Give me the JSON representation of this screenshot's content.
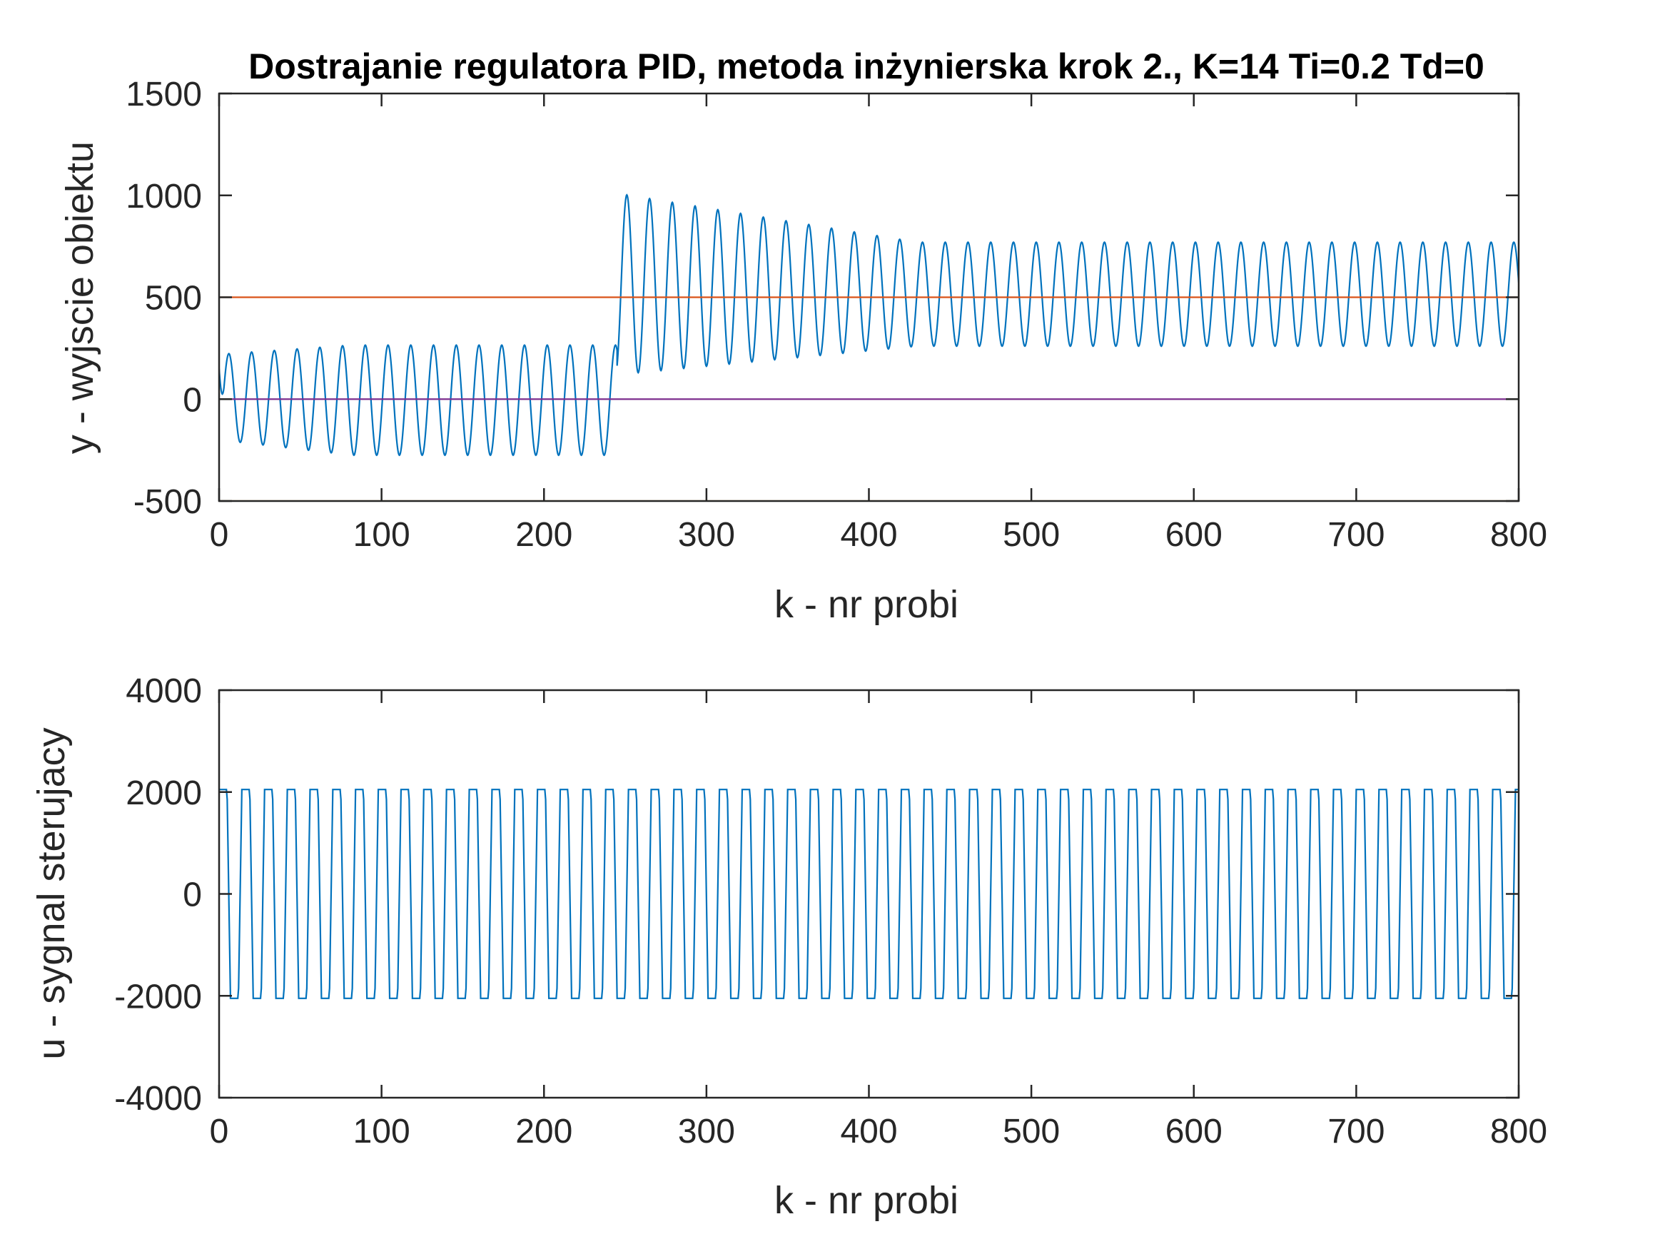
{
  "chart_data": [
    {
      "type": "line",
      "title": "Dostrajanie regulatora PID, metoda inżynierska krok 2., K=14 Ti=0.2 Td=0",
      "xlabel": "k - nr probi",
      "ylabel": "y - wyjscie obiektu",
      "xlim": [
        0,
        800
      ],
      "ylim": [
        -500,
        1500
      ],
      "xticks": [
        "0",
        "100",
        "200",
        "300",
        "400",
        "500",
        "600",
        "700",
        "800"
      ],
      "yticks": [
        "-500",
        "0",
        "500",
        "1000",
        "1500"
      ],
      "grid": false,
      "series": [
        {
          "color": "#0072BD",
          "style": "oscillation",
          "segments": [
            {
              "x_start": 0,
              "x_end": 245,
              "period": 14,
              "y_start": 150,
              "peaks": [
                220,
                265
              ],
              "troughs": [
                -200,
                -275
              ]
            },
            {
              "x_start": 245,
              "x_end": 800,
              "period": 14,
              "peaks": [
                1010,
                770
              ],
              "troughs": [
                120,
                260
              ]
            }
          ]
        },
        {
          "color": "#D95319",
          "x": [
            0,
            800
          ],
          "y": [
            500,
            500
          ]
        },
        {
          "color": "#7E2F8E",
          "x": [
            0,
            800
          ],
          "y": [
            0,
            0
          ]
        },
        {
          "color": "#EDB120",
          "x": [
            0,
            800
          ],
          "y": [
            -500,
            -500
          ]
        }
      ]
    },
    {
      "type": "line",
      "title": "",
      "xlabel": "k - nr probi",
      "ylabel": "u - sygnal sterujacy",
      "xlim": [
        0,
        800
      ],
      "ylim": [
        -4000,
        4000
      ],
      "xticks": [
        "0",
        "100",
        "200",
        "300",
        "400",
        "500",
        "600",
        "700",
        "800"
      ],
      "yticks": [
        "-4000",
        "-2000",
        "0",
        "2000",
        "4000"
      ],
      "grid": false,
      "series": [
        {
          "color": "#0072BD",
          "style": "square-wave",
          "period": 14,
          "high": 2050,
          "low": -2050,
          "x_range": [
            0,
            800
          ]
        }
      ]
    }
  ]
}
